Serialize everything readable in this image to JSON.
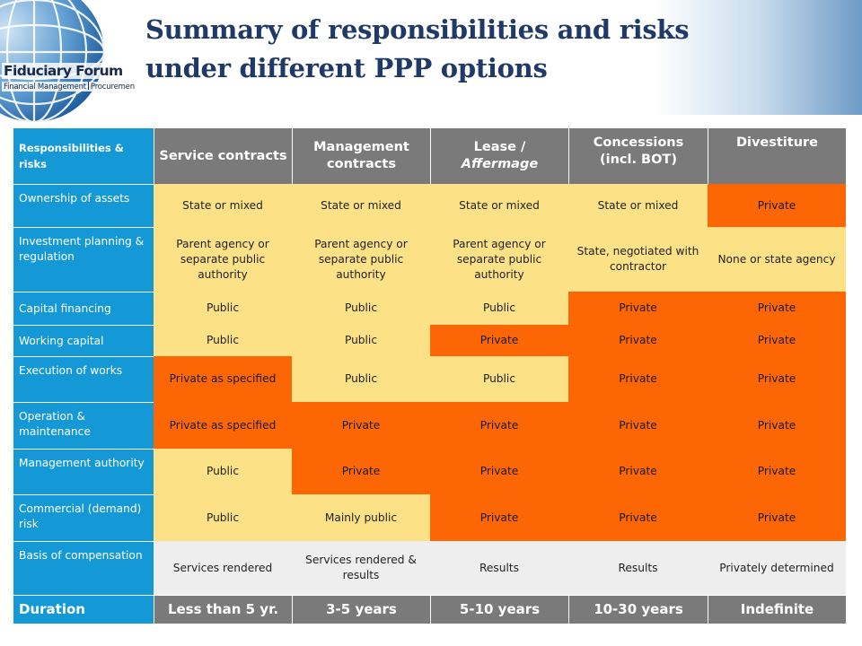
{
  "title": {
    "line1": "Summary of responsibilities and risks",
    "line2": "under different PPP options"
  },
  "logo": {
    "name": "Fiduciary Forum",
    "sub_left": "Financial Management",
    "sub_right": "Procurement"
  },
  "table": {
    "corner": "Responsibilities & risks",
    "columns": [
      "Service contracts",
      "Management contracts",
      "Lease / Affermage",
      "Concessions (incl. BOT)",
      "Divestiture"
    ],
    "rows": [
      {
        "label": "Ownership of assets",
        "cells": [
          {
            "text": "State or mixed",
            "tone": "yellow"
          },
          {
            "text": "State or mixed",
            "tone": "yellow"
          },
          {
            "text": "State or mixed",
            "tone": "yellow"
          },
          {
            "text": "State or mixed",
            "tone": "yellow"
          },
          {
            "text": "Private",
            "tone": "orange"
          }
        ]
      },
      {
        "label": "Investment planning & regulation",
        "cells": [
          {
            "text": "Parent agency or separate public authority",
            "tone": "yellow"
          },
          {
            "text": "Parent agency or separate public authority",
            "tone": "yellow"
          },
          {
            "text": "Parent agency or separate public authority",
            "tone": "yellow"
          },
          {
            "text": "State, negotiated with contractor",
            "tone": "yellow"
          },
          {
            "text": "None or state agency",
            "tone": "yellow"
          }
        ]
      },
      {
        "label": "Capital financing",
        "cells": [
          {
            "text": "Public",
            "tone": "yellow"
          },
          {
            "text": "Public",
            "tone": "yellow"
          },
          {
            "text": "Public",
            "tone": "yellow"
          },
          {
            "text": "Private",
            "tone": "orange"
          },
          {
            "text": "Private",
            "tone": "orange"
          }
        ]
      },
      {
        "label": "Working capital",
        "cells": [
          {
            "text": "Public",
            "tone": "yellow"
          },
          {
            "text": "Public",
            "tone": "yellow"
          },
          {
            "text": "Private",
            "tone": "orange"
          },
          {
            "text": "Private",
            "tone": "orange"
          },
          {
            "text": "Private",
            "tone": "orange"
          }
        ]
      },
      {
        "label": "Execution of works",
        "cells": [
          {
            "text": "Private as specified",
            "tone": "orange"
          },
          {
            "text": "Public",
            "tone": "yellow"
          },
          {
            "text": "Public",
            "tone": "yellow"
          },
          {
            "text": "Private",
            "tone": "orange"
          },
          {
            "text": "Private",
            "tone": "orange"
          }
        ]
      },
      {
        "label": "Operation & maintenance",
        "cells": [
          {
            "text": "Private as specified",
            "tone": "orange"
          },
          {
            "text": "Private",
            "tone": "orange"
          },
          {
            "text": "Private",
            "tone": "orange"
          },
          {
            "text": "Private",
            "tone": "orange"
          },
          {
            "text": "Private",
            "tone": "orange"
          }
        ]
      },
      {
        "label": "Management authority",
        "cells": [
          {
            "text": "Public",
            "tone": "yellow"
          },
          {
            "text": "Private",
            "tone": "orange"
          },
          {
            "text": "Private",
            "tone": "orange"
          },
          {
            "text": "Private",
            "tone": "orange"
          },
          {
            "text": "Private",
            "tone": "orange"
          }
        ]
      },
      {
        "label": "Commercial (demand) risk",
        "cells": [
          {
            "text": "Public",
            "tone": "yellow"
          },
          {
            "text": "Mainly public",
            "tone": "yellow"
          },
          {
            "text": "Private",
            "tone": "orange"
          },
          {
            "text": "Private",
            "tone": "orange"
          },
          {
            "text": "Private",
            "tone": "orange"
          }
        ]
      },
      {
        "label": "Basis of compensation",
        "cells": [
          {
            "text": "Services rendered",
            "tone": "grey"
          },
          {
            "text": "Services rendered & results",
            "tone": "grey"
          },
          {
            "text": "Results",
            "tone": "grey"
          },
          {
            "text": "Results",
            "tone": "grey"
          },
          {
            "text": "Privately determined",
            "tone": "grey"
          }
        ]
      }
    ],
    "duration": {
      "label": "Duration",
      "values": [
        "Less than 5 yr.",
        "3-5 years",
        "5-10 years",
        "10-30 years",
        "Indefinite"
      ]
    }
  },
  "colors": {
    "row_label_blue": "#1499d6",
    "header_grey": "#7a7a7a",
    "yellow": "#fce187",
    "orange": "#fd6604",
    "light_grey": "#eeeeee",
    "title_navy": "#1f3a66"
  }
}
